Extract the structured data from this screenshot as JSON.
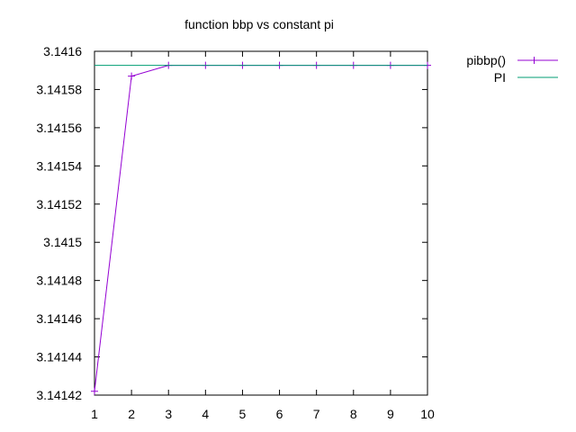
{
  "chart_data": {
    "type": "line",
    "title": "function bbp vs constant pi",
    "xlabel": "",
    "ylabel": "",
    "xlim": [
      1,
      10
    ],
    "ylim": [
      3.14142,
      3.1416
    ],
    "x_ticks": [
      1,
      2,
      3,
      4,
      5,
      6,
      7,
      8,
      9,
      10
    ],
    "x_tick_labels": [
      "1",
      "2",
      "3",
      "4",
      "5",
      "6",
      "7",
      "8",
      "9",
      "10"
    ],
    "y_ticks": [
      3.14142,
      3.14144,
      3.14146,
      3.14148,
      3.1415,
      3.14152,
      3.14154,
      3.14156,
      3.14158,
      3.1416
    ],
    "y_tick_labels": [
      "3.14142",
      "3.14144",
      "3.14146",
      "3.14148",
      "3.1415",
      "3.14152",
      "3.14154",
      "3.14156",
      "3.14158",
      "3.1416"
    ],
    "grid": false,
    "legend_position": "outside-top-right",
    "series": [
      {
        "name": "pibbp()",
        "color": "#9400d3",
        "marker": "plus",
        "x": [
          1,
          2,
          3,
          4,
          5,
          6,
          7,
          8,
          9,
          10
        ],
        "y": [
          3.141422,
          3.141587,
          3.141592654,
          3.141592654,
          3.141592654,
          3.141592654,
          3.141592654,
          3.141592654,
          3.141592654,
          3.141592654
        ]
      },
      {
        "name": "PI",
        "color": "#009e73",
        "marker": "none",
        "x": [
          1,
          10
        ],
        "y": [
          3.141592654,
          3.141592654
        ]
      }
    ]
  }
}
